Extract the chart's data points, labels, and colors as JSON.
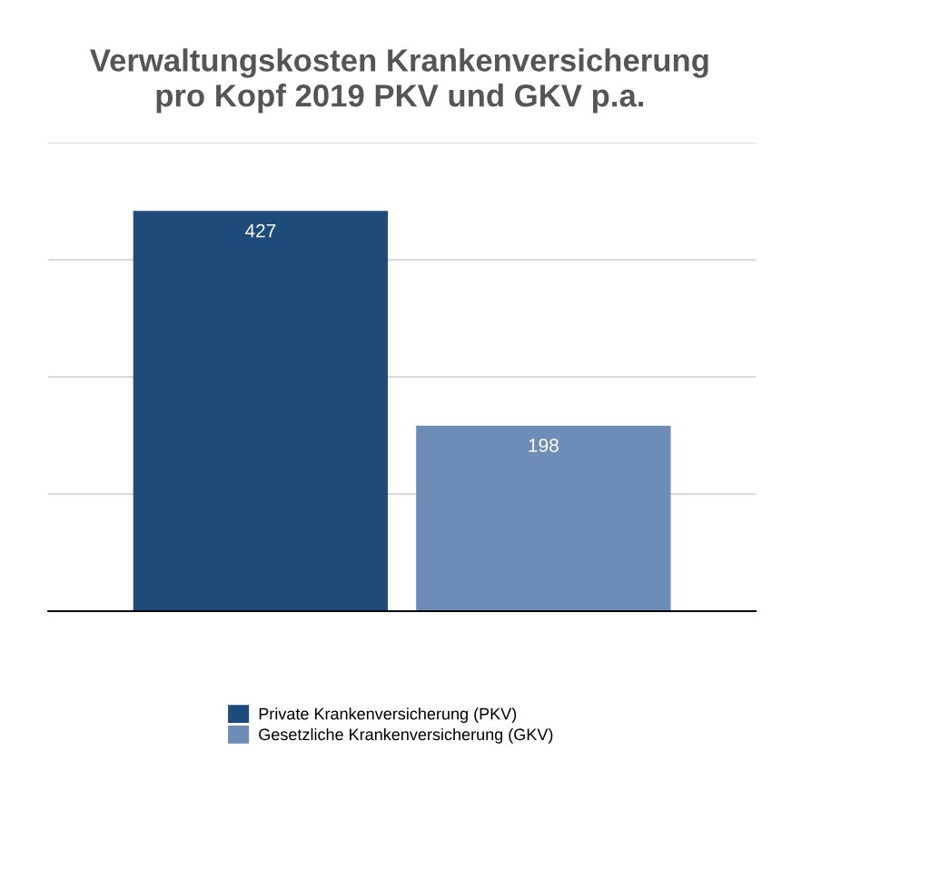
{
  "chart_data": {
    "type": "bar",
    "title": "Verwaltungskosten Krankenversicherung\npro Kopf 2019 PKV und GKV p.a.",
    "categories": [
      null
    ],
    "series": [
      {
        "name": "Private Krankenversicherung (PKV)",
        "color": "#1f4b7a",
        "values": [
          427
        ]
      },
      {
        "name": "Gesetzliche Krankenversicherung (GKV)",
        "color": "#6d8db8",
        "values": [
          198
        ]
      }
    ],
    "ylim": [
      0,
      500
    ],
    "yticks": [
      {
        "value": 0,
        "label": null
      },
      {
        "value": 125,
        "label": null
      },
      {
        "value": 250,
        "label": null
      },
      {
        "value": 375,
        "label": null
      },
      {
        "value": 500,
        "label": null
      }
    ],
    "grid": "y",
    "legend": "bottom",
    "data_labels": true
  }
}
